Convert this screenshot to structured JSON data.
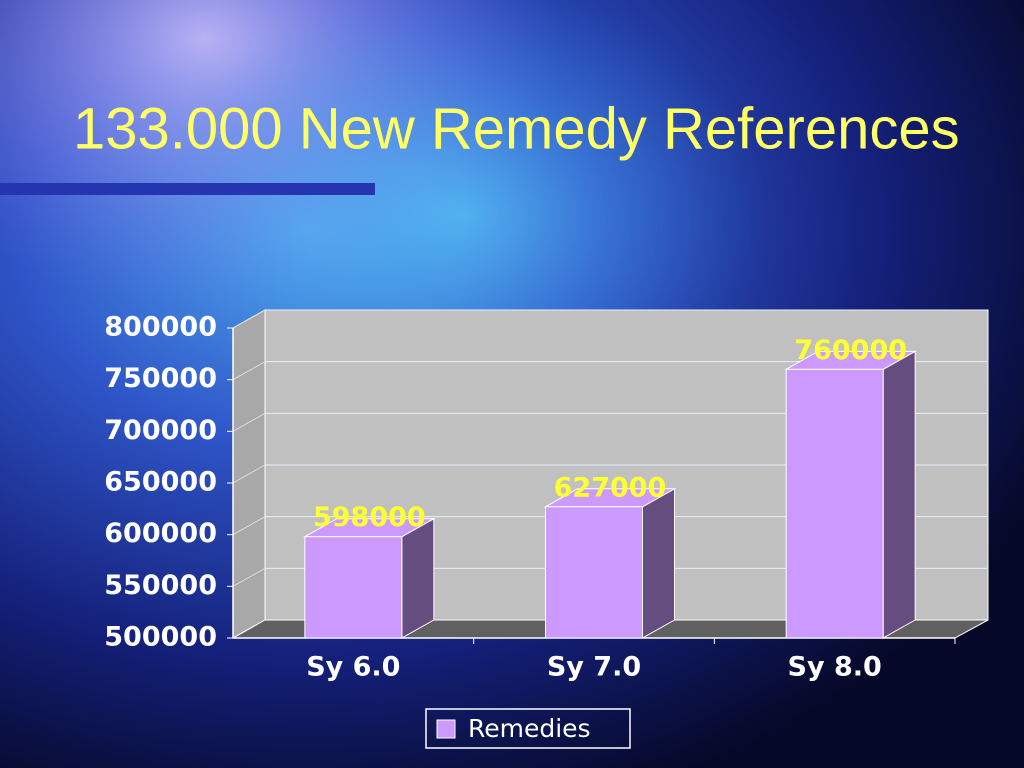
{
  "chart_data": {
    "type": "bar",
    "title": "133.000 New Remedy References",
    "categories": [
      "Sy 6.0",
      "Sy 7.0",
      "Sy 8.0"
    ],
    "series": [
      {
        "name": "Remedies",
        "color": "#cc99ff",
        "values": [
          598000,
          627000,
          760000
        ]
      }
    ],
    "ylim": [
      500000,
      800000
    ],
    "yticks": [
      500000,
      550000,
      600000,
      650000,
      700000,
      750000,
      800000
    ],
    "grid": true,
    "legend": "bottom"
  }
}
